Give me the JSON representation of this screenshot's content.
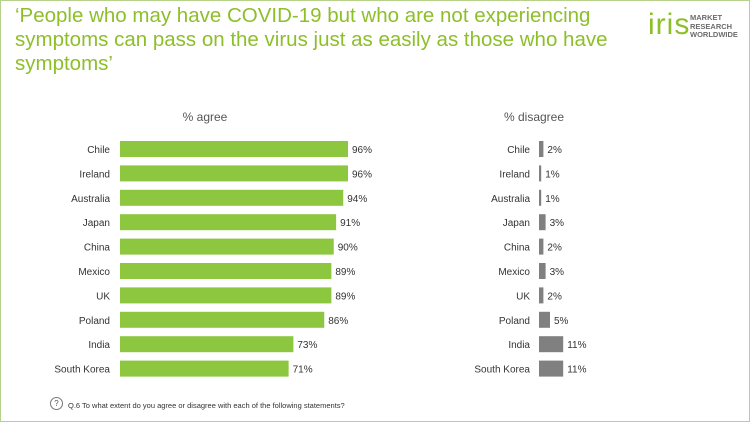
{
  "header": {
    "title": "‘People who may have COVID-19 but who are not experiencing symptoms can pass on the virus just as easily as those who have symptoms’"
  },
  "logo": {
    "word": "iris",
    "lines": [
      "MARKET",
      "RESEARCH",
      "WORLDWIDE"
    ]
  },
  "footnote": {
    "icon": "question-icon",
    "icon_glyph": "?",
    "text": "Q.6 To what extent do you agree or disagree with each of the following statements?"
  },
  "colors": {
    "accent": "#8dbf2a",
    "agree_bar": "#8dc63f",
    "disagree_bar": "#808080"
  },
  "chart_data": [
    {
      "type": "bar",
      "orientation": "horizontal",
      "title": "% agree",
      "categories": [
        "Chile",
        "Ireland",
        "Australia",
        "Japan",
        "China",
        "Mexico",
        "UK",
        "Poland",
        "India",
        "South Korea"
      ],
      "values": [
        96,
        96,
        94,
        91,
        90,
        89,
        89,
        86,
        73,
        71
      ],
      "value_labels": [
        "96%",
        "96%",
        "94%",
        "91%",
        "90%",
        "89%",
        "89%",
        "86%",
        "73%",
        "71%"
      ],
      "xlim": [
        0,
        100
      ],
      "grid": false,
      "legend": "none"
    },
    {
      "type": "bar",
      "orientation": "horizontal",
      "title": "% disagree",
      "categories": [
        "Chile",
        "Ireland",
        "Australia",
        "Japan",
        "China",
        "Mexico",
        "UK",
        "Poland",
        "India",
        "South Korea"
      ],
      "values": [
        2,
        1,
        1,
        3,
        2,
        3,
        2,
        5,
        11,
        11
      ],
      "value_labels": [
        "2%",
        "1%",
        "1%",
        "3%",
        "2%",
        "3%",
        "2%",
        "5%",
        "11%",
        "11%"
      ],
      "xlim": [
        0,
        100
      ],
      "grid": false,
      "legend": "none"
    }
  ]
}
